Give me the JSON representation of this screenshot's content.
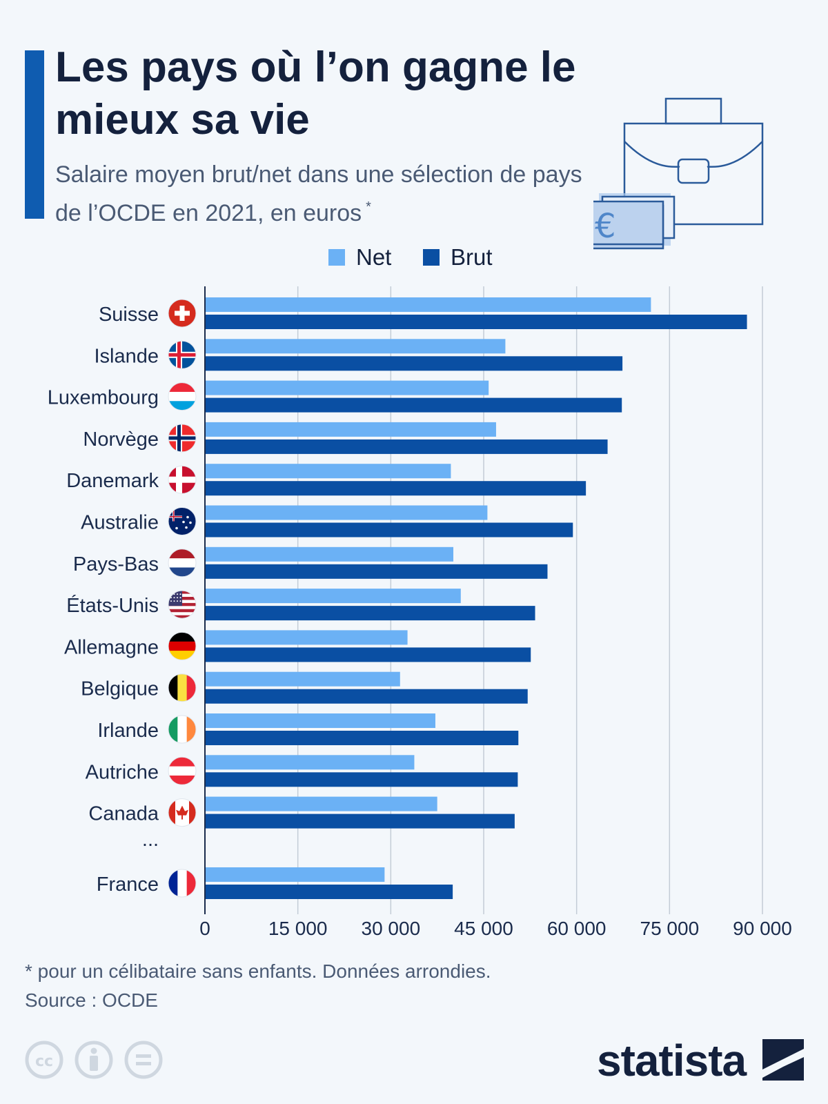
{
  "header": {
    "title": "Les pays où l’on gagne le mieux sa vie",
    "subtitle": "Salaire moyen brut/net dans une sélection de pays de l’OCDE en 2021, en euros",
    "subtitle_mark": "*"
  },
  "colors": {
    "net": "#6bb1f5",
    "brut": "#0a4fa3",
    "accent": "#0f5cb0",
    "grid": "#c3ccd6",
    "text": "#14213d"
  },
  "chart_data": {
    "type": "bar",
    "orientation": "horizontal",
    "categories": [
      "Suisse",
      "Islande",
      "Luxembourg",
      "Norvège",
      "Danemark",
      "Australie",
      "Pays-Bas",
      "États-Unis",
      "Allemagne",
      "Belgique",
      "Irlande",
      "Autriche",
      "Canada",
      "...",
      "France"
    ],
    "series": [
      {
        "name": "Net",
        "values": [
          72000,
          48500,
          45800,
          47000,
          39700,
          45600,
          40100,
          41300,
          32700,
          31500,
          37200,
          33800,
          37500,
          null,
          29000
        ]
      },
      {
        "name": "Brut",
        "values": [
          87500,
          67400,
          67300,
          65000,
          61500,
          59400,
          55300,
          53300,
          52600,
          52100,
          50600,
          50500,
          50000,
          null,
          40000
        ]
      }
    ],
    "flags": [
      "switzerland-flag",
      "iceland-flag",
      "luxembourg-flag",
      "norway-flag",
      "denmark-flag",
      "australia-flag",
      "netherlands-flag",
      "usa-flag",
      "germany-flag",
      "belgium-flag",
      "ireland-flag",
      "austria-flag",
      "canada-flag",
      null,
      "france-flag"
    ],
    "xlim": [
      0,
      90000
    ],
    "xticks": [
      0,
      15000,
      30000,
      45000,
      60000,
      75000,
      90000
    ],
    "xtick_labels": [
      "0",
      "15 000",
      "30 000",
      "45 000",
      "60 000",
      "75 000",
      "90 000"
    ],
    "grid": true,
    "legend": "top-center"
  },
  "footer": {
    "note": "* pour un célibataire sans enfants. Données arrondies.",
    "source": "Source : OCDE",
    "brand": "statista"
  }
}
